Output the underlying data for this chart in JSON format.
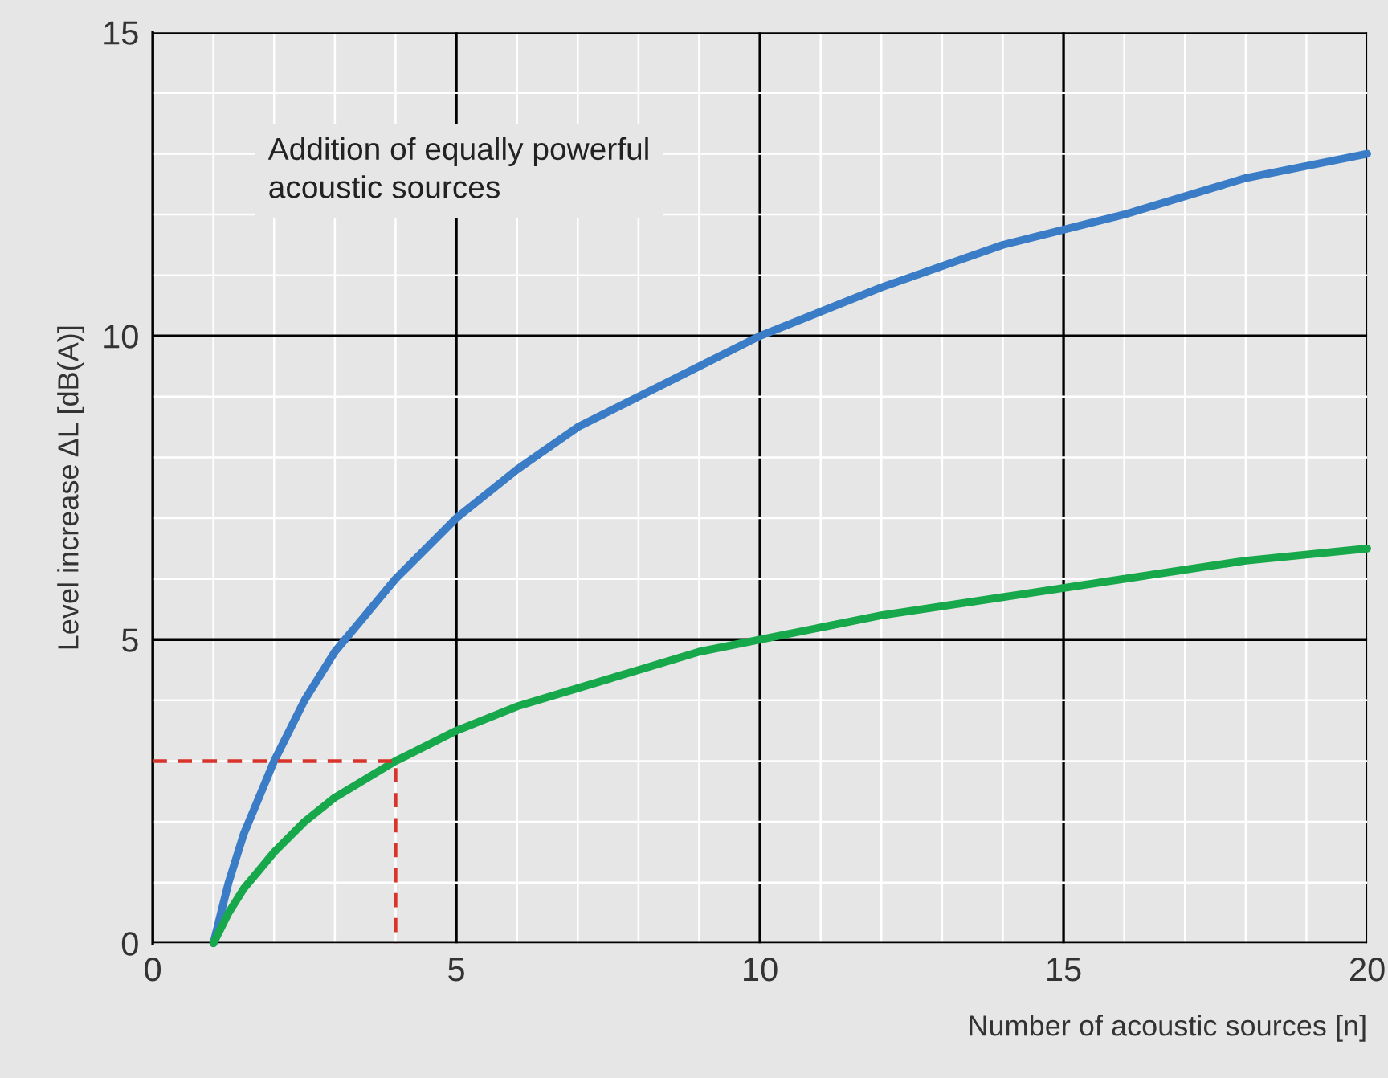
{
  "chart_data": {
    "type": "line",
    "xlabel": "Number of acoustic sources [n]",
    "ylabel": "Level increase ΔL [dB(A)]",
    "annotations": [
      "Addition of equally powerful\nacoustic sources"
    ],
    "xlim": [
      0,
      20
    ],
    "ylim": [
      0,
      15
    ],
    "xticks": [
      0,
      5,
      10,
      15,
      20
    ],
    "yticks": [
      0,
      5,
      10,
      15
    ],
    "grid": true,
    "line_style": "solid",
    "marker": "none",
    "series": [
      {
        "color": "#3a7dc6",
        "x": [
          1,
          1.1,
          1.25,
          1.5,
          1.75,
          2,
          2.5,
          3,
          3.5,
          4,
          5,
          6,
          7,
          8,
          9,
          10,
          12,
          14,
          16,
          18,
          20
        ],
        "values": [
          0,
          0.4,
          1.0,
          1.8,
          2.4,
          3.0,
          4.0,
          4.8,
          5.4,
          6.0,
          7.0,
          7.8,
          8.5,
          9.0,
          9.5,
          10.0,
          10.8,
          11.5,
          12.0,
          12.6,
          13.0
        ]
      },
      {
        "color": "#16a84a",
        "x": [
          1,
          1.1,
          1.25,
          1.5,
          1.75,
          2,
          2.5,
          3,
          3.5,
          4,
          5,
          6,
          7,
          8,
          9,
          10,
          12,
          14,
          16,
          18,
          20
        ],
        "values": [
          0,
          0.2,
          0.5,
          0.9,
          1.2,
          1.5,
          2.0,
          2.4,
          2.7,
          3.0,
          3.5,
          3.9,
          4.2,
          4.5,
          4.8,
          5.0,
          5.4,
          5.7,
          6.0,
          6.3,
          6.5
        ]
      },
      {
        "color": "#d9342b",
        "line_style": "dashed",
        "x": [
          0,
          4,
          4
        ],
        "values": [
          3,
          3,
          0
        ]
      }
    ]
  }
}
